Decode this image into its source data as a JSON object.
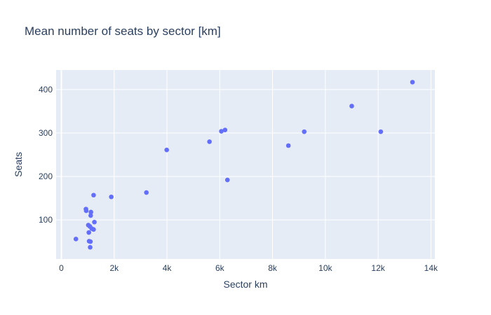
{
  "chart_data": {
    "type": "scatter",
    "title": "Mean number of seats by sector [km]",
    "xlabel": "Sector km",
    "ylabel": "Seats",
    "xlim": [
      -200,
      14150
    ],
    "ylim": [
      10,
      445
    ],
    "xticks": [
      0,
      2000,
      4000,
      6000,
      8000,
      10000,
      12000,
      14000
    ],
    "xtick_labels": [
      "0",
      "2k",
      "4k",
      "6k",
      "8k",
      "10k",
      "12k",
      "14k"
    ],
    "yticks": [
      100,
      200,
      300,
      400
    ],
    "ytick_labels": [
      "100",
      "200",
      "300",
      "400"
    ],
    "grid": true,
    "colors": {
      "plot_bg": "#e5ecf6",
      "grid": "#ffffff",
      "marker": "#636efa",
      "text": "#2a3f5f"
    },
    "points": [
      {
        "x": 550,
        "y": 56
      },
      {
        "x": 930,
        "y": 125
      },
      {
        "x": 940,
        "y": 121
      },
      {
        "x": 1020,
        "y": 88
      },
      {
        "x": 1040,
        "y": 71
      },
      {
        "x": 1050,
        "y": 51
      },
      {
        "x": 1080,
        "y": 85
      },
      {
        "x": 1090,
        "y": 37
      },
      {
        "x": 1100,
        "y": 50
      },
      {
        "x": 1110,
        "y": 110
      },
      {
        "x": 1120,
        "y": 118
      },
      {
        "x": 1150,
        "y": 80
      },
      {
        "x": 1220,
        "y": 78
      },
      {
        "x": 1220,
        "y": 157
      },
      {
        "x": 1250,
        "y": 95
      },
      {
        "x": 1890,
        "y": 153
      },
      {
        "x": 3220,
        "y": 163
      },
      {
        "x": 3990,
        "y": 261
      },
      {
        "x": 5610,
        "y": 280
      },
      {
        "x": 6060,
        "y": 304
      },
      {
        "x": 6200,
        "y": 307
      },
      {
        "x": 6290,
        "y": 192
      },
      {
        "x": 8600,
        "y": 271
      },
      {
        "x": 9200,
        "y": 303
      },
      {
        "x": 11000,
        "y": 362
      },
      {
        "x": 12100,
        "y": 303
      },
      {
        "x": 13300,
        "y": 417
      }
    ]
  }
}
